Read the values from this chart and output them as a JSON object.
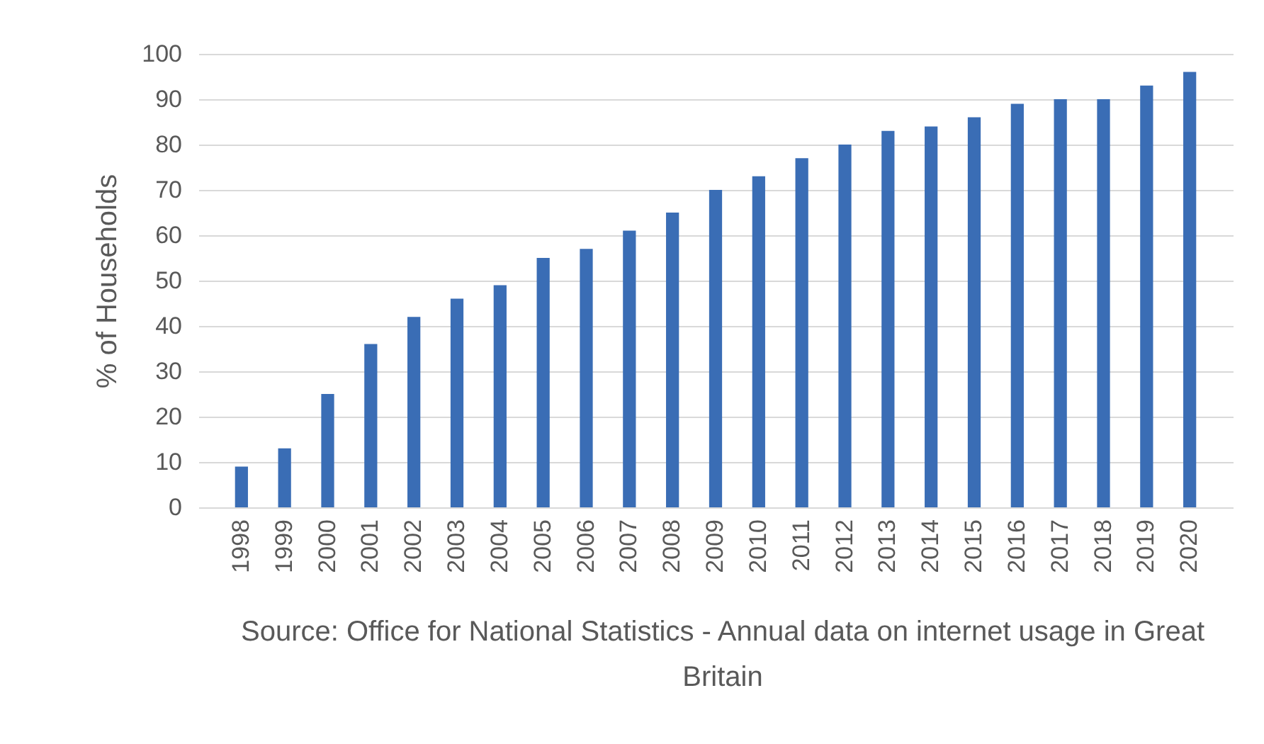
{
  "chart_data": {
    "type": "bar",
    "ylabel": "% of Households",
    "categories": [
      "1998",
      "1999",
      "2000",
      "2001",
      "2002",
      "2003",
      "2004",
      "2005",
      "2006",
      "2007",
      "2008",
      "2009",
      "2010",
      "2011",
      "2012",
      "2013",
      "2014",
      "2015",
      "2016",
      "2017",
      "2018",
      "2019",
      "2020"
    ],
    "values": [
      9,
      13,
      25,
      36,
      42,
      46,
      49,
      55,
      57,
      61,
      65,
      70,
      73,
      77,
      80,
      83,
      84,
      86,
      89,
      90,
      90,
      93,
      96
    ],
    "color": "#3a6db5",
    "ylim": [
      0,
      100
    ],
    "yticks": [
      0,
      10,
      20,
      30,
      40,
      50,
      60,
      70,
      80,
      90,
      100
    ],
    "grid": "y",
    "annotations": [
      "Source: Office for National Statistics - Annual data on internet usage in Great Britain"
    ]
  }
}
